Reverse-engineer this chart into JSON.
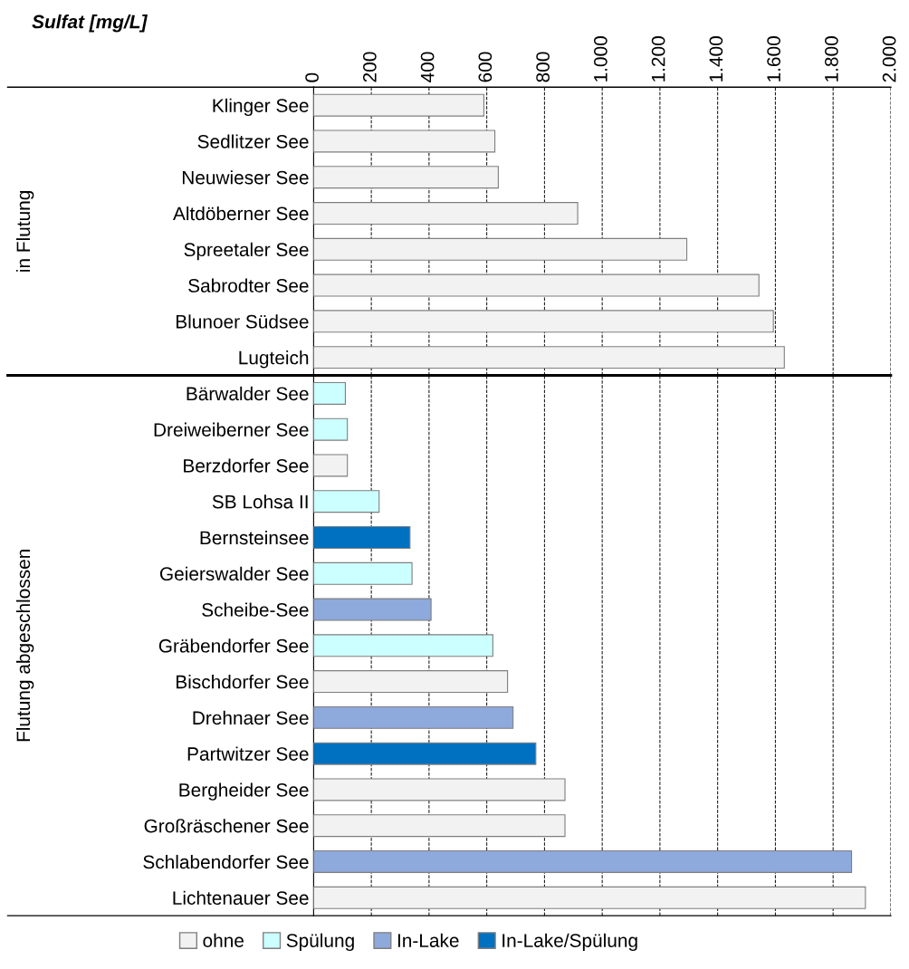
{
  "chart_data": [
    {
      "type": "bar",
      "orientation": "horizontal",
      "title": "Sulfat [mg/L]",
      "categories": [
        "Klinger See",
        "Sedlitzer See",
        "Neuwieser See",
        "Altdöberner See",
        "Spreetaler See",
        "Sabrodter See",
        "Blunoer Südsee",
        "Lugteich"
      ],
      "series": [
        {
          "color": "#f2f2f2",
          "values": [
            590,
            628,
            640,
            915,
            1293,
            1543,
            1593,
            1631
          ]
        }
      ],
      "xlim": [
        0,
        2000
      ],
      "xticks": [
        0,
        200,
        400,
        600,
        800,
        {
          "value": 1000,
          "label": "1.000"
        },
        {
          "value": 1200,
          "label": "1.200"
        },
        {
          "value": 1400,
          "label": "1.400"
        },
        {
          "value": 1600,
          "label": "1.600"
        },
        {
          "value": 1800,
          "label": "1.800"
        },
        {
          "value": 2000,
          "label": "2.000"
        }
      ],
      "grid": "x",
      "line_style": "dashed",
      "annotations": [
        "in Flutung"
      ]
    },
    {
      "type": "bar",
      "orientation": "horizontal",
      "categories": [
        "Bärwalder See",
        "Dreiweiberner See",
        "Berzdorfer See",
        "SB Lohsa II",
        "Bernsteinsee",
        "Geierswalder See",
        "Scheibe-See",
        "Gräbendorfer See",
        "Bischdorfer See",
        "Drehnaer See",
        "Partwitzer See",
        "Bergheider See",
        "Großräschener See",
        "Schlabendorfer See",
        "Lichtenauer See"
      ],
      "series": [
        {
          "name": "ohne",
          "color": "#f2f2f2",
          "values": [
            null,
            null,
            117,
            null,
            null,
            null,
            null,
            null,
            672,
            null,
            null,
            871,
            871,
            null,
            1912
          ]
        },
        {
          "name": "Spülung",
          "color": "#ccffff",
          "values": [
            110,
            117,
            null,
            227,
            null,
            341,
            null,
            621,
            null,
            null,
            null,
            null,
            null,
            null,
            null
          ]
        },
        {
          "name": "In-Lake",
          "color": "#8ea9db",
          "values": [
            null,
            null,
            null,
            null,
            null,
            null,
            407,
            null,
            null,
            691,
            null,
            null,
            null,
            1864,
            null
          ]
        },
        {
          "name": "In-Lake/Spülung",
          "color": "#0070c0",
          "values": [
            null,
            null,
            null,
            null,
            334,
            null,
            null,
            null,
            null,
            null,
            770,
            null,
            null,
            null,
            null
          ]
        }
      ],
      "xlim": [
        0,
        2000
      ],
      "xticks": [
        0,
        200,
        400,
        600,
        800,
        1000,
        1200,
        1400,
        1600,
        1800,
        2000
      ],
      "tick_labels": "y",
      "grid": "x",
      "line_style": "dashed",
      "legend": "bottom",
      "annotations": [
        "Flutung abgeschlossen"
      ]
    }
  ]
}
